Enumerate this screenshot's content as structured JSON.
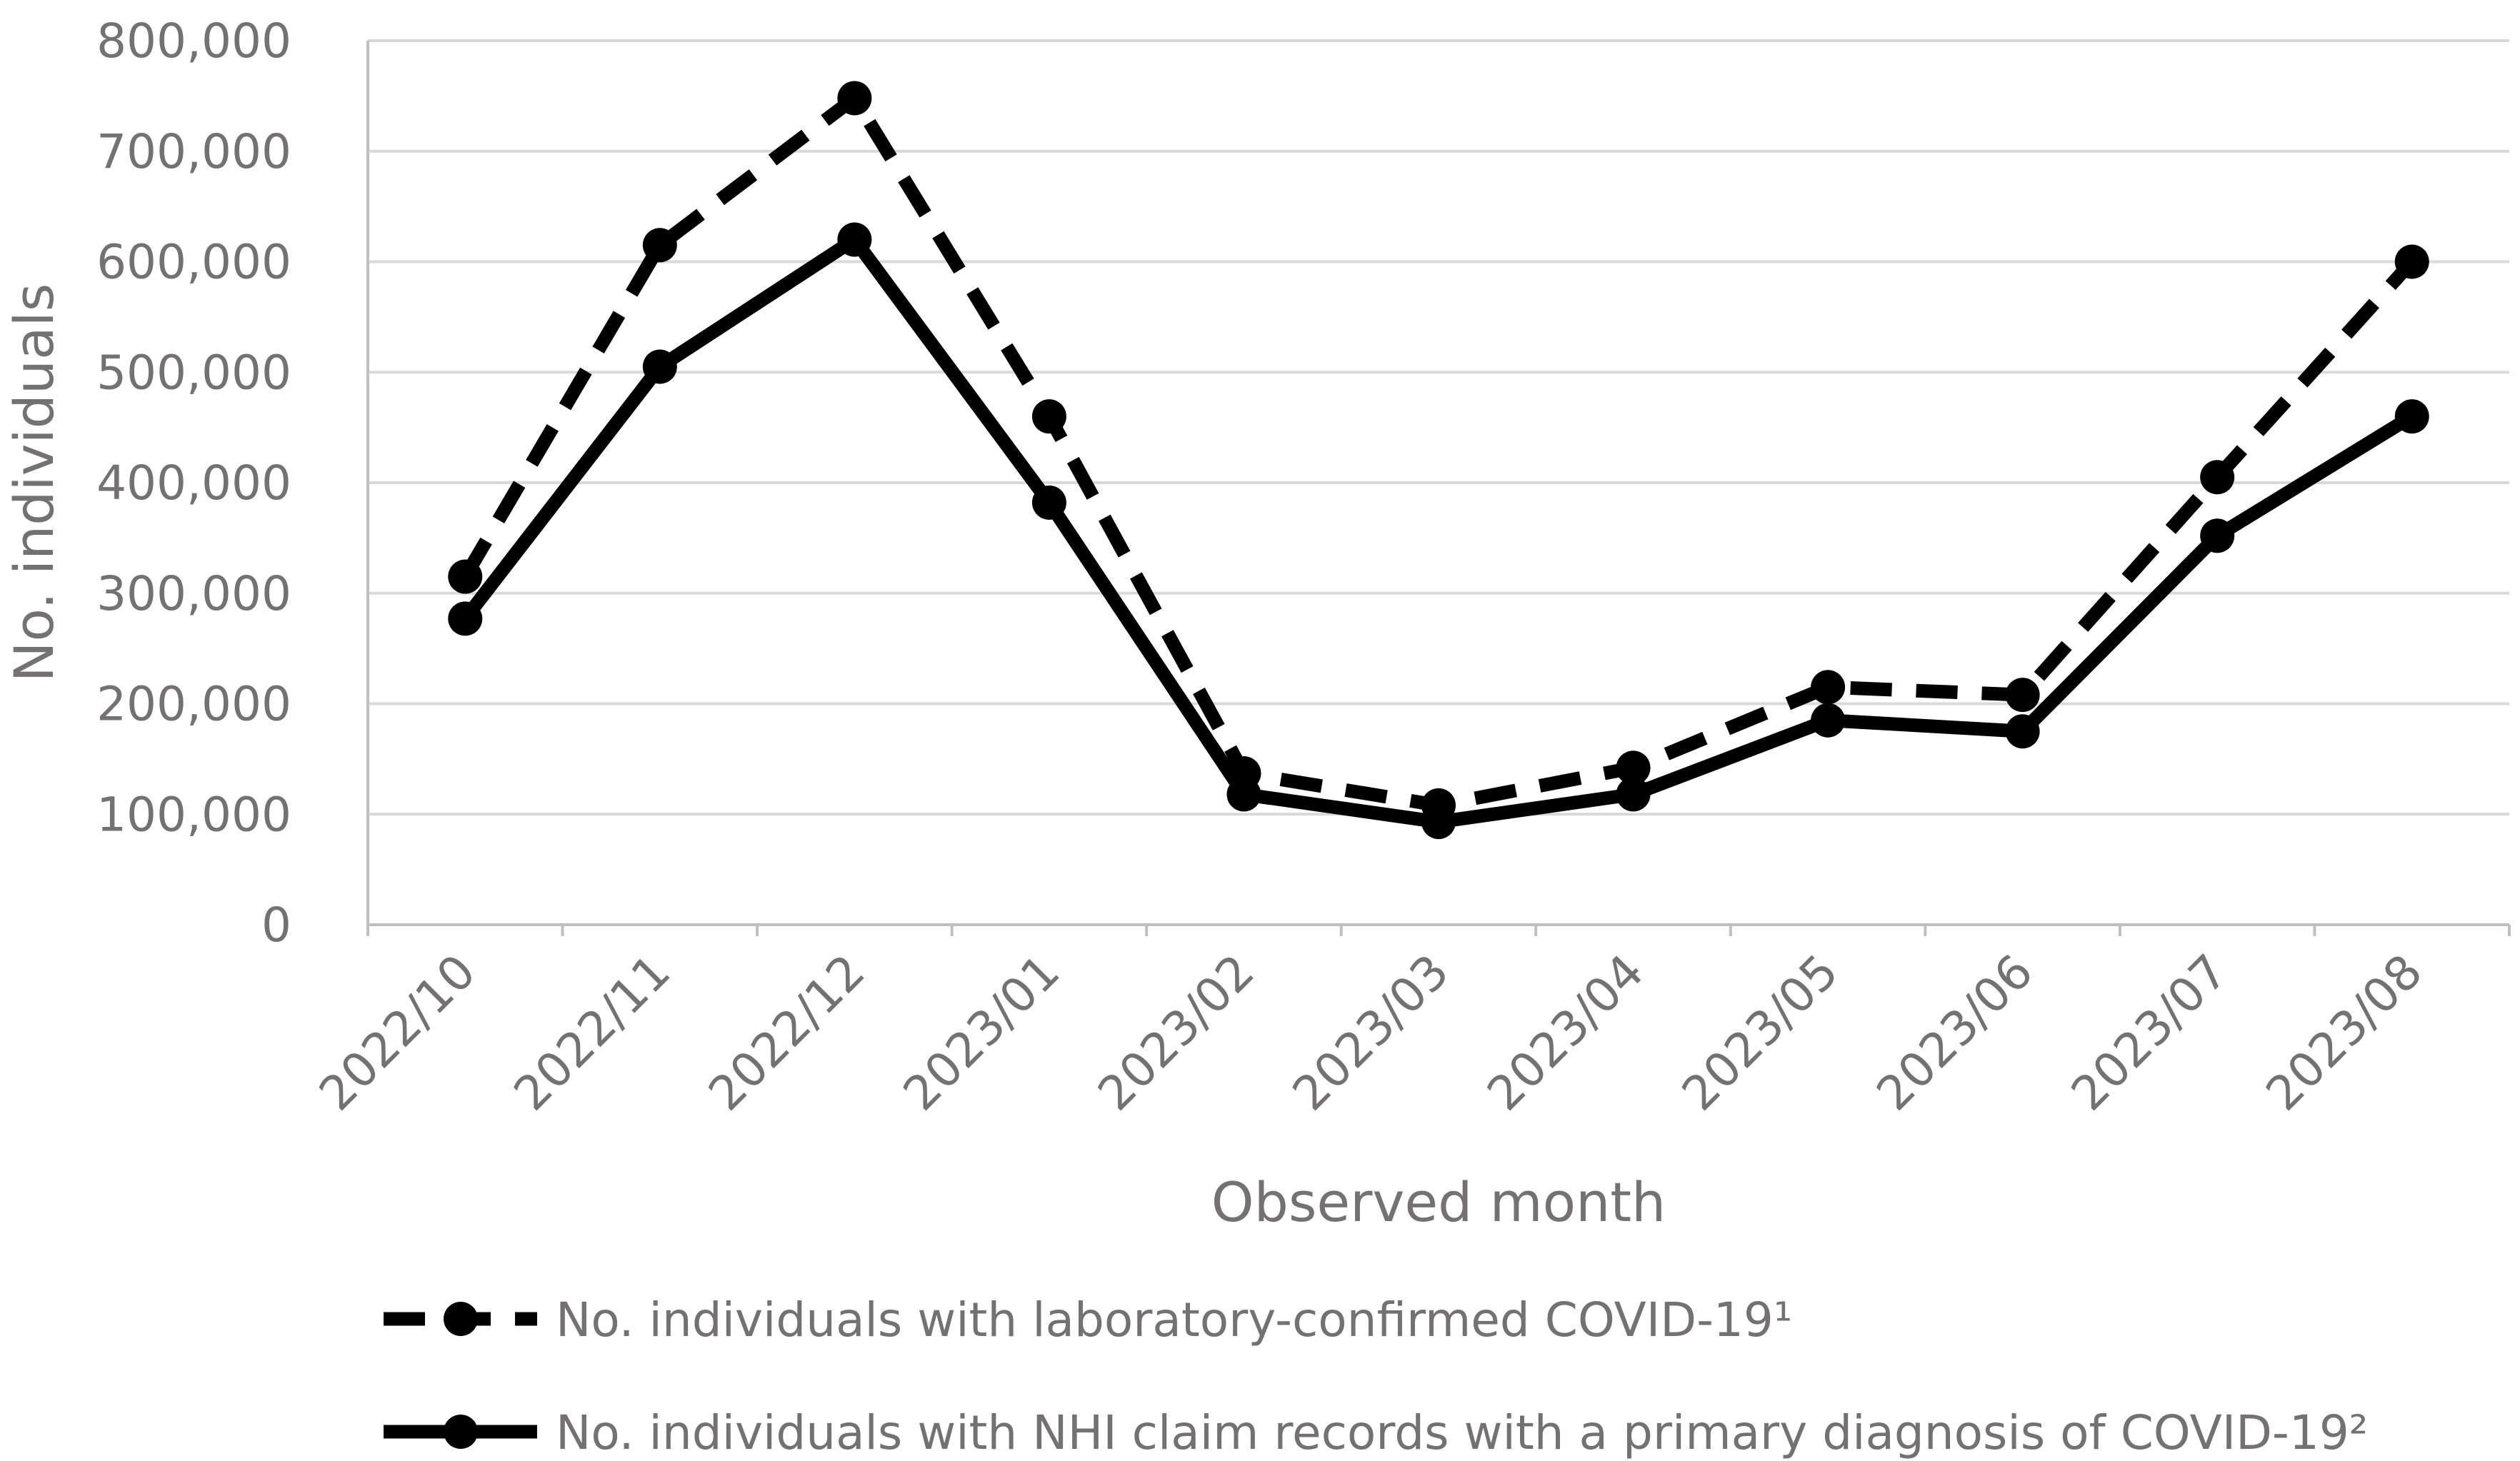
{
  "chart_data": {
    "type": "line",
    "title": "",
    "xlabel": "Observed month",
    "ylabel": "No. individuals",
    "ylim": [
      0,
      800000
    ],
    "yticks": [
      0,
      100000,
      200000,
      300000,
      400000,
      500000,
      600000,
      700000,
      800000
    ],
    "ytick_labels": [
      "0",
      "100,000",
      "200,000",
      "300,000",
      "400,000",
      "500,000",
      "600,000",
      "700,000",
      "800,000"
    ],
    "categories": [
      "2022/10",
      "2022/11",
      "2022/12",
      "2023/01",
      "2023/02",
      "2023/03",
      "2023/04",
      "2023/05",
      "2023/06",
      "2023/07",
      "2023/08"
    ],
    "grid": "horizontal",
    "legend_position": "bottom",
    "series": [
      {
        "name": "No. individuals with laboratory-confirmed COVID-19¹",
        "style": "dashed",
        "color": "#000000",
        "values": [
          315000,
          615000,
          748000,
          460000,
          137000,
          108000,
          142000,
          215000,
          208000,
          405000,
          600000
        ]
      },
      {
        "name": "No. individuals with NHI claim records with a primary diagnosis of COVID-19²",
        "style": "solid",
        "color": "#000000",
        "values": [
          277000,
          505000,
          620000,
          382000,
          118000,
          93000,
          118000,
          185000,
          175000,
          352000,
          460000
        ]
      }
    ]
  }
}
